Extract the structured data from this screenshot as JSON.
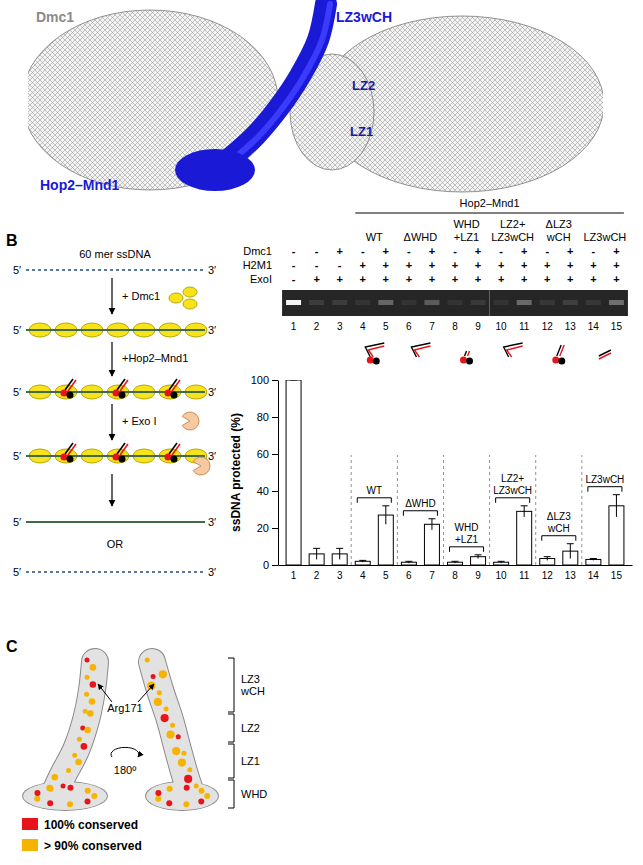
{
  "panel_a": {
    "dmc1": "Dmc1",
    "lz3": "LZ3wCH",
    "lz2": "LZ2",
    "lz1": "LZ1",
    "complex": "Hop2–Mnd1"
  },
  "panel_letters": [
    "B",
    "C"
  ],
  "schematic": {
    "substrate": "60 mer ssDNA",
    "five": "5′",
    "three": "3′",
    "steps": [
      "+ Dmc1",
      "+Hop2–Mnd1",
      "+ Exo I"
    ],
    "or": "OR"
  },
  "gel": {
    "title": "Hop2–Mnd1",
    "groups": [
      {
        "label": "WT",
        "lanes": [
          "4",
          "5"
        ]
      },
      {
        "label": "ΔWHD",
        "lanes": [
          "6",
          "7"
        ]
      },
      {
        "label": "WHD +LZ1",
        "lanes": [
          "8",
          "9"
        ]
      },
      {
        "label": "LZ2+ LZ3wCH",
        "lanes": [
          "10",
          "11"
        ]
      },
      {
        "label": "ΔLZ3 wCH",
        "lanes": [
          "12",
          "13"
        ]
      },
      {
        "label": "LZ3wCH",
        "lanes": [
          "14",
          "15"
        ]
      }
    ],
    "rows": [
      {
        "label": "Dmc1",
        "signs": [
          "-",
          "-",
          "+",
          "-",
          "+",
          "-",
          "+",
          "-",
          "+",
          "-",
          "+",
          "-",
          "+",
          "-",
          "+"
        ]
      },
      {
        "label": "H2M1",
        "signs": [
          "-",
          "-",
          "-",
          "+",
          "+",
          "+",
          "+",
          "+",
          "+",
          "+",
          "+",
          "+",
          "+",
          "+",
          "+"
        ]
      },
      {
        "label": "ExoI",
        "signs": [
          "-",
          "+",
          "+",
          "+",
          "+",
          "+",
          "+",
          "+",
          "+",
          "+",
          "+",
          "+",
          "+",
          "+",
          "+"
        ]
      }
    ]
  },
  "chart_data": {
    "type": "bar",
    "categories": [
      "1",
      "2",
      "3",
      "4",
      "5",
      "6",
      "7",
      "8",
      "9",
      "10",
      "11",
      "12",
      "13",
      "14",
      "15"
    ],
    "values": [
      100,
      6,
      6,
      2,
      27,
      1.5,
      22,
      1.5,
      4.5,
      1.5,
      29,
      3.5,
      7.5,
      3,
      32
    ],
    "errors": [
      0,
      3,
      3,
      0.5,
      5,
      0.5,
      3,
      0.5,
      1,
      0.5,
      3,
      1,
      4,
      0.5,
      6
    ],
    "color": "#ffffff",
    "ylim": [
      0,
      100
    ],
    "yticks": [
      0,
      20,
      40,
      60,
      80,
      100
    ],
    "y_label": "ssDNA protected (%)",
    "groups": [
      {
        "label": "WT",
        "lanes": [
          "4",
          "5"
        ]
      },
      {
        "label": "ΔWHD",
        "lanes": [
          "6",
          "7"
        ]
      },
      {
        "label": "WHD +LZ1",
        "lanes": [
          "8",
          "9"
        ]
      },
      {
        "label": "LZ2+ LZ3wCH",
        "lanes": [
          "10",
          "11"
        ]
      },
      {
        "label": "ΔLZ3 wCH",
        "lanes": [
          "12",
          "13"
        ]
      },
      {
        "label": "LZ3wCH",
        "lanes": [
          "14",
          "15"
        ]
      }
    ]
  },
  "panel_c": {
    "residue": "Arg171",
    "rotation": "180º",
    "domains": [
      "LZ3 wCH",
      "LZ2",
      "LZ1",
      "WHD"
    ],
    "legend": [
      {
        "label": "100% conserved",
        "color": "#e8141b"
      },
      {
        "label": "> 90% conserved",
        "color": "#f6b400"
      }
    ]
  }
}
